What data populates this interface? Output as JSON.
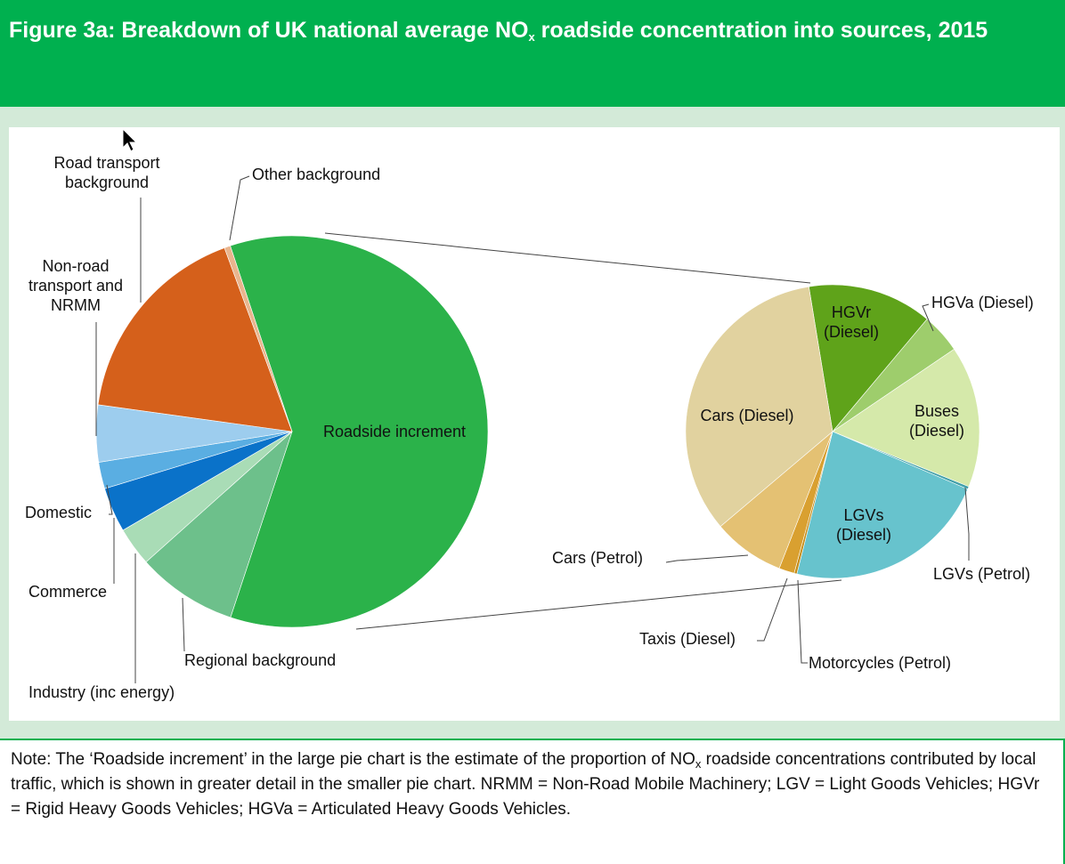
{
  "header": {
    "title_parts": [
      "Figure 3a: Breakdown of UK national average NO",
      "x",
      " roadside concentration into sources, 2015"
    ]
  },
  "chart_data": [
    {
      "type": "pie",
      "categories": [
        "Roadside increment",
        "Regional background",
        "Industry (inc energy)",
        "Commerce",
        "Domestic",
        "Non-road transport and NRMM",
        "Road transport background",
        "Other background"
      ],
      "values": [
        60.2,
        8.3,
        3.2,
        3.7,
        2.2,
        4.7,
        17.2,
        0.5
      ],
      "colors": [
        "#2bb24a",
        "#6dc08b",
        "#a9dcb6",
        "#0a72c9",
        "#5aaee2",
        "#9dcdee",
        "#d5601b",
        "#e9b58e"
      ]
    },
    {
      "type": "pie",
      "categories": [
        "HGVr (Diesel)",
        "HGVa (Diesel)",
        "Buses (Diesel)",
        "LGVs (Petrol)",
        "LGVs (Diesel)",
        "Motorcycles (Petrol)",
        "Taxis (Diesel)",
        "Cars (Petrol)",
        "Cars (Diesel)"
      ],
      "values": [
        13.7,
        4.4,
        15.6,
        0.3,
        22.5,
        0.3,
        1.7,
        7.9,
        33.6
      ],
      "colors": [
        "#5fa31a",
        "#9ecd6c",
        "#d5e9aa",
        "#3f9fa8",
        "#67c3cd",
        "#c48c18",
        "#d9a030",
        "#e4c173",
        "#e1d29f"
      ]
    }
  ],
  "note": {
    "parts": [
      "Note: The ‘Roadside increment’ in the large pie chart is the estimate of the proportion of NO",
      "x",
      " roadside concentrations contributed by local traffic, which is shown in greater detail in the smaller pie chart. NRMM = Non-Road Mobile Machinery; LGV = Light Goods Vehicles; HGVr = Rigid Heavy Goods Vehicles; HGVa = Articulated Heavy Goods Vehicles."
    ]
  }
}
